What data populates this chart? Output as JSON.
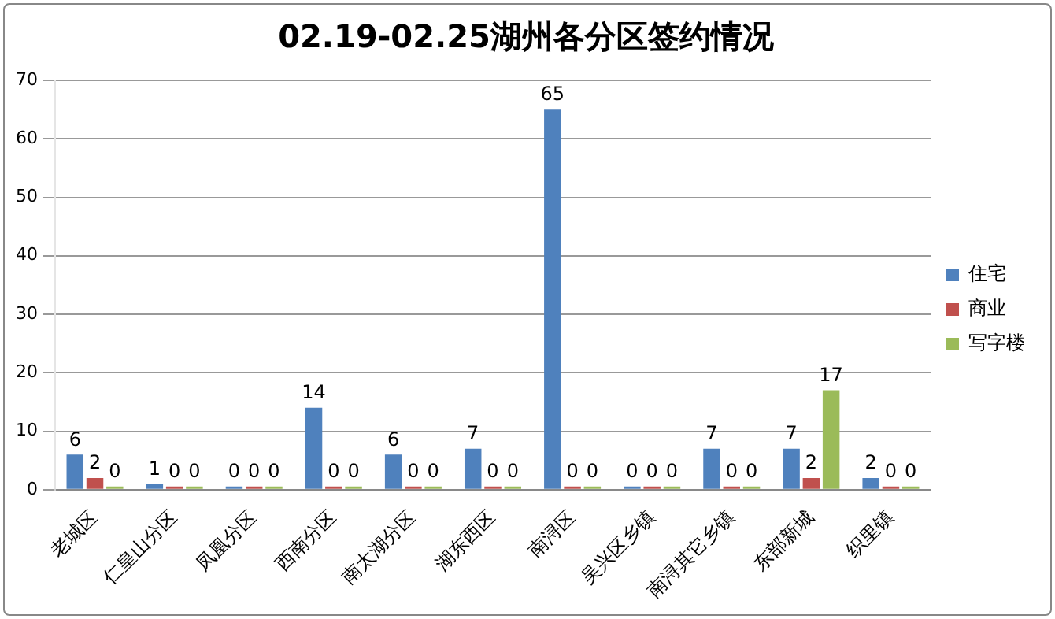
{
  "chart_data": {
    "type": "bar",
    "title": "02.19-02.25湖州各分区签约情况",
    "categories": [
      "老城区",
      "仁皇山分区",
      "凤凰分区",
      "西南分区",
      "南太湖分区",
      "湖东西区",
      "南浔区",
      "吴兴区乡镇",
      "南浔其它乡镇",
      "东部新城",
      "织里镇"
    ],
    "series": [
      {
        "name": "住宅",
        "color": "#4f81bd",
        "values": [
          6,
          1,
          0,
          14,
          6,
          7,
          65,
          0,
          7,
          7,
          2
        ]
      },
      {
        "name": "商业",
        "color": "#c0504d",
        "values": [
          2,
          0,
          0,
          0,
          0,
          0,
          0,
          0,
          0,
          2,
          0
        ]
      },
      {
        "name": "写字楼",
        "color": "#9bbb59",
        "values": [
          0,
          0,
          0,
          0,
          0,
          0,
          0,
          0,
          0,
          17,
          0
        ]
      }
    ],
    "ylim": [
      0,
      70
    ],
    "yticks": [
      0,
      10,
      20,
      30,
      40,
      50,
      60,
      70
    ],
    "grid": "y",
    "legend": "right",
    "data_labels": true
  }
}
